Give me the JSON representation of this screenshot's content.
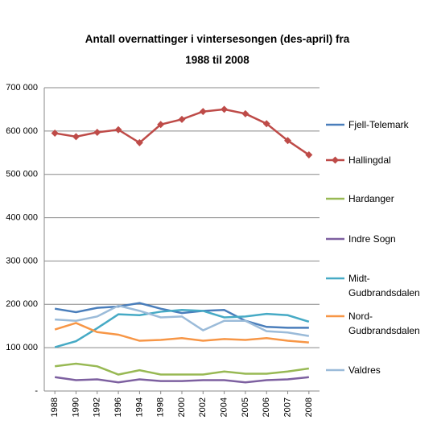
{
  "chart_data": {
    "type": "line",
    "title": "Antall overnattinger i vintersesongen (des-april) fra 1988 til 2008",
    "categories": [
      "1988",
      "1990",
      "1992",
      "1996",
      "1994",
      "1998",
      "2000",
      "2002",
      "2004",
      "2005",
      "2006",
      "2007",
      "2008"
    ],
    "ylim": [
      0,
      700000
    ],
    "yticks": [
      {
        "value": 0,
        "label": "-"
      },
      {
        "value": 100000,
        "label": "100 000"
      },
      {
        "value": 200000,
        "label": "200 000"
      },
      {
        "value": 300000,
        "label": "300 000"
      },
      {
        "value": 400000,
        "label": "400 000"
      },
      {
        "value": 500000,
        "label": "500 000"
      },
      {
        "value": 600000,
        "label": "600 000"
      },
      {
        "value": 700000,
        "label": "700 000"
      }
    ],
    "grid": true,
    "legend": "right",
    "series": [
      {
        "name": "Fjell-Telemark",
        "color": "#4a7ebb",
        "values": [
          190000,
          182000,
          192000,
          195000,
          203000,
          190000,
          180000,
          185000,
          187000,
          162000,
          148000,
          146000,
          146000
        ]
      },
      {
        "name": "Hallingdal",
        "color": "#be4b48",
        "marker": "diamond",
        "values": [
          595000,
          587000,
          597000,
          603000,
          573000,
          615000,
          627000,
          645000,
          650000,
          640000,
          617000,
          578000,
          545000
        ]
      },
      {
        "name": "Hardanger",
        "color": "#98b954",
        "values": [
          57000,
          63000,
          57000,
          38000,
          48000,
          38000,
          38000,
          38000,
          45000,
          40000,
          40000,
          45000,
          52000
        ]
      },
      {
        "name": "Indre Sogn",
        "color": "#7d60a0",
        "values": [
          32000,
          25000,
          27000,
          20000,
          27000,
          23000,
          23000,
          25000,
          25000,
          20000,
          25000,
          27000,
          32000
        ]
      },
      {
        "name": "Midt-Gudbrandsdalen",
        "color": "#46aac5",
        "values": [
          101000,
          115000,
          145000,
          177000,
          175000,
          183000,
          187000,
          185000,
          170000,
          172000,
          178000,
          175000,
          160000
        ]
      },
      {
        "name": "Nord-Gudbrandsdalen",
        "color": "#f79646",
        "values": [
          142000,
          157000,
          136000,
          130000,
          116000,
          118000,
          122000,
          116000,
          120000,
          118000,
          122000,
          116000,
          112000
        ]
      },
      {
        "name": "Valdres",
        "color": "#9bbbd9",
        "values": [
          165000,
          162000,
          172000,
          197000,
          185000,
          170000,
          172000,
          140000,
          162000,
          162000,
          138000,
          135000,
          127000
        ]
      }
    ]
  }
}
